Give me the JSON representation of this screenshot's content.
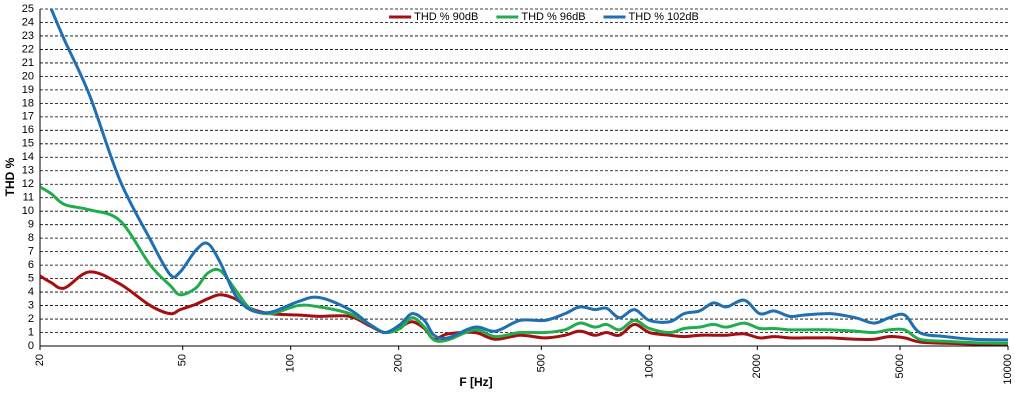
{
  "chart_data": {
    "type": "line",
    "y_label": "THD %",
    "x_label": "F [Hz]",
    "x_scale": "log",
    "grid": true,
    "legend": "top",
    "xlim": [
      20,
      10000
    ],
    "ylim": [
      0,
      25
    ],
    "xticks": [
      20,
      50,
      100,
      200,
      500,
      1000,
      2000,
      5000,
      10000
    ],
    "yticks": [
      0,
      1,
      2,
      3,
      4,
      5,
      6,
      7,
      8,
      9,
      10,
      11,
      12,
      13,
      14,
      15,
      16,
      17,
      18,
      19,
      20,
      21,
      22,
      23,
      24,
      25
    ],
    "x": [
      20,
      21.5,
      23.4,
      27.5,
      33.4,
      40.6,
      46.1,
      49.2,
      54.4,
      58.7,
      63.6,
      70,
      77,
      87.7,
      105,
      120,
      146,
      166,
      183,
      202,
      218,
      236,
      251,
      274,
      326,
      372,
      436,
      512,
      582,
      640,
      705,
      760,
      826,
      908,
      1000,
      1140,
      1250,
      1380,
      1510,
      1640,
      1840,
      2030,
      2230,
      2460,
      2710,
      3190,
      3750,
      4230,
      4670,
      5150,
      5670,
      6680,
      8020,
      10000
    ],
    "series": [
      {
        "name": "THD % 90dB",
        "color": "#a50f12",
        "values": [
          5.2,
          4.7,
          4.3,
          5.5,
          4.6,
          3.0,
          2.4,
          2.7,
          3.1,
          3.5,
          3.8,
          3.5,
          2.8,
          2.4,
          2.3,
          2.2,
          2.2,
          1.5,
          1.0,
          1.4,
          1.8,
          1.3,
          0.5,
          0.9,
          1.0,
          0.5,
          0.8,
          0.6,
          0.8,
          1.1,
          0.8,
          1.0,
          0.8,
          1.6,
          1.0,
          0.8,
          0.7,
          0.8,
          0.8,
          0.8,
          0.9,
          0.6,
          0.7,
          0.6,
          0.6,
          0.6,
          0.5,
          0.5,
          0.7,
          0.6,
          0.3,
          0.2,
          0.15,
          0.15
        ]
      },
      {
        "name": "THD % 96dB",
        "color": "#22ad4c",
        "values": [
          11.8,
          11.3,
          10.5,
          10.1,
          9.3,
          6.0,
          4.5,
          3.8,
          4.3,
          5.4,
          5.6,
          4.2,
          2.8,
          2.4,
          3.0,
          2.9,
          2.4,
          1.6,
          1.0,
          1.3,
          2.1,
          1.4,
          0.45,
          0.45,
          1.2,
          0.7,
          1.0,
          1.0,
          1.2,
          1.7,
          1.4,
          1.6,
          1.2,
          1.9,
          1.3,
          1.0,
          1.3,
          1.4,
          1.6,
          1.4,
          1.7,
          1.3,
          1.3,
          1.2,
          1.2,
          1.2,
          1.1,
          1.0,
          1.2,
          1.2,
          0.5,
          0.35,
          0.25,
          0.2
        ]
      },
      {
        "name": "THD % 102dB",
        "color": "#1f6fb2",
        "values": [
          null,
          25,
          22.7,
          18.6,
          12.3,
          7.9,
          5.3,
          5.5,
          7.1,
          7.6,
          6.2,
          3.8,
          2.7,
          2.5,
          3.3,
          3.6,
          2.7,
          1.6,
          1.0,
          1.6,
          2.4,
          1.9,
          0.8,
          0.6,
          1.4,
          1.1,
          1.9,
          1.9,
          2.4,
          2.9,
          2.7,
          2.8,
          2.1,
          2.7,
          1.9,
          1.8,
          2.4,
          2.6,
          3.2,
          2.9,
          3.4,
          2.4,
          2.6,
          2.2,
          2.3,
          2.4,
          2.1,
          1.7,
          2.1,
          2.3,
          1.0,
          0.7,
          0.5,
          0.45
        ]
      }
    ]
  }
}
